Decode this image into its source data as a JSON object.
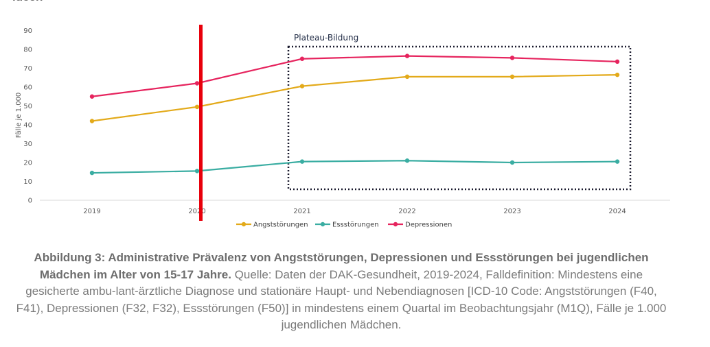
{
  "top_fragment": "ideen",
  "chart_data": {
    "type": "line",
    "title": "",
    "xlabel": "",
    "ylabel": "Fälle je 1.000",
    "x": [
      "2019",
      "2020",
      "2021",
      "2022",
      "2023",
      "2024"
    ],
    "ylim": [
      0,
      90
    ],
    "yticks": [
      0,
      10,
      20,
      30,
      40,
      50,
      60,
      70,
      80,
      90
    ],
    "grid": false,
    "legend_position": "bottom",
    "series": [
      {
        "name": "Angststörungen",
        "color": "#e3aa1a",
        "values": [
          42,
          49.5,
          60.5,
          65.5,
          65.5,
          66.5
        ]
      },
      {
        "name": "Essstörungen",
        "color": "#3aada2",
        "values": [
          14.5,
          15.5,
          20.5,
          21,
          20,
          20.5
        ]
      },
      {
        "name": "Depressionen",
        "color": "#e6245e",
        "values": [
          55,
          62,
          75,
          76.5,
          75.5,
          73.5
        ]
      }
    ],
    "marker_line": {
      "x": "2020",
      "color": "#e8000b"
    },
    "annotations": [
      {
        "text": "Plateau-Bildung",
        "from": "2021",
        "to": "2024"
      }
    ]
  },
  "caption": {
    "bold": "Abbildung 3: Administrative Prävalenz von Angststörungen, Depressionen und Essstörungen bei jugendlichen Mädchen im Alter von 15-17 Jahre.",
    "text": " Quelle: Daten der DAK-Gesundheit, 2019-2024, Falldefinition: Mindestens eine gesicherte ambu-lant-ärztliche Diagnose und stationäre Haupt- und Nebendiagnosen [ICD-10 Code: Angststörungen (F40, F41), Depressionen (F32, F32), Essstörungen (F50)] in mindestens einem Quartal im Beobachtungsjahr (M1Q), Fälle je 1.000 jugendlichen Mädchen."
  }
}
